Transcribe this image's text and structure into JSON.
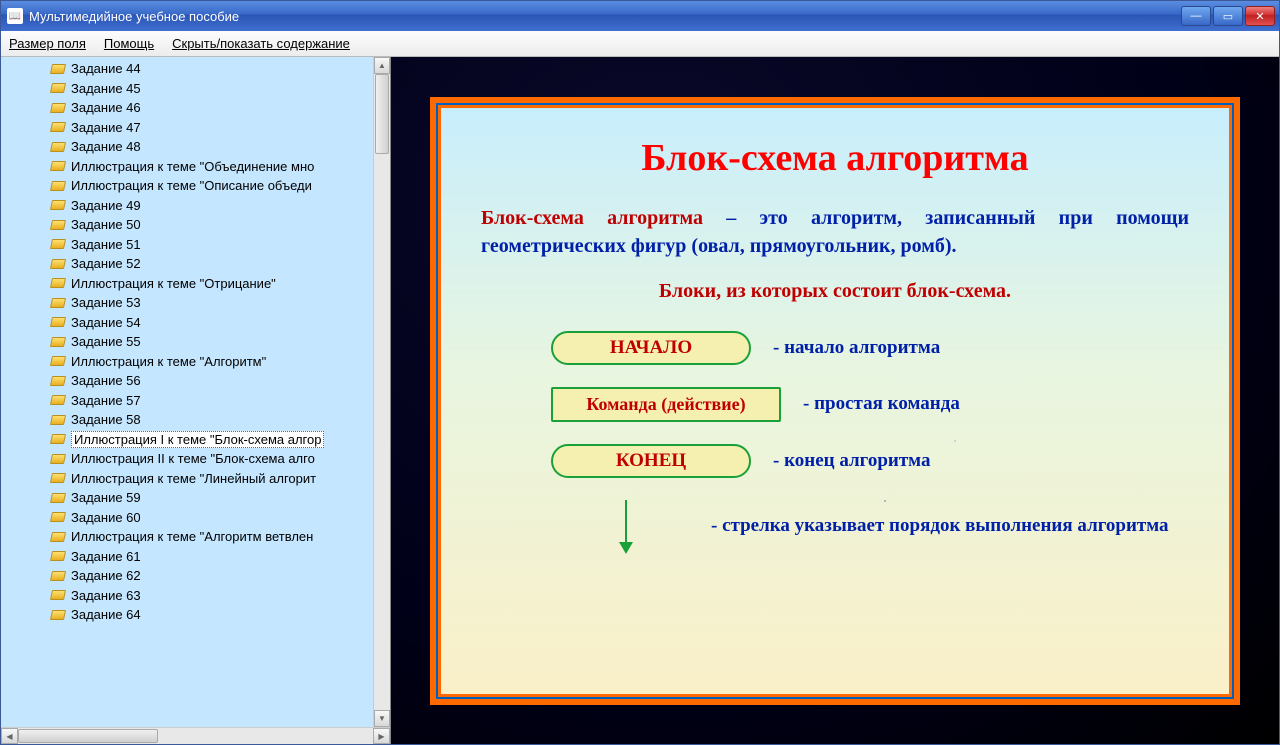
{
  "window": {
    "title": "Мультимедийное учебное пособие"
  },
  "menu": {
    "field_size": "Размер поля",
    "help": "Помощь",
    "toggle_toc": "Скрыть/показать содержание"
  },
  "tree": {
    "items": [
      "Задание 44",
      "Задание 45",
      "Задание 46",
      "Задание 47",
      "Задание 48",
      "Иллюстрация к теме \"Объединение мно",
      "Иллюстрация к теме \"Описание объеди",
      "Задание 49",
      "Задание 50",
      "Задание 51",
      "Задание 52",
      "Иллюстрация к теме \"Отрицание\"",
      "Задание 53",
      "Задание 54",
      "Задание 55",
      "Иллюстрация к теме \"Алгоритм\"",
      "Задание 56",
      "Задание 57",
      "Задание 58",
      "Иллюстрация I к теме \"Блок-схема алгор",
      "Иллюстрация II к теме \"Блок-схема алго",
      "Иллюстрация к теме \"Линейный алгорит",
      "Задание 59",
      "Задание 60",
      "Иллюстрация к теме \"Алгоритм ветвлен",
      "Задание 61",
      "Задание 62",
      "Задание 63",
      "Задание 64"
    ],
    "selected_index": 19
  },
  "slide": {
    "title": "Блок-схема алгоритма",
    "definition_term": "Блок-схема алгоритма",
    "definition_rest": " – это алгоритм, записанный при помощи геометрических фигур (овал, прямо­угольник, ромб).",
    "subtitle": "Блоки, из которых состоит блок-схема.",
    "blocks": {
      "start": {
        "label": "НАЧАЛО",
        "desc": "- начало алгоритма"
      },
      "command": {
        "label": "Команда (действие)",
        "desc": "- простая команда"
      },
      "end": {
        "label": "КОНЕЦ",
        "desc": "- конец алгоритма"
      }
    },
    "arrow_desc": "- стрелка указывает порядок выполнения алгоритма"
  },
  "colors": {
    "titlebar": "#3868c8",
    "sidebar_bg": "#c5e6ff",
    "slide_border": "#ff6a00",
    "slide_title": "#ff0000",
    "slide_text": "#0020a8",
    "slide_term": "#c00000",
    "block_border": "#1aa038",
    "block_fill": "#f5f0b0"
  }
}
